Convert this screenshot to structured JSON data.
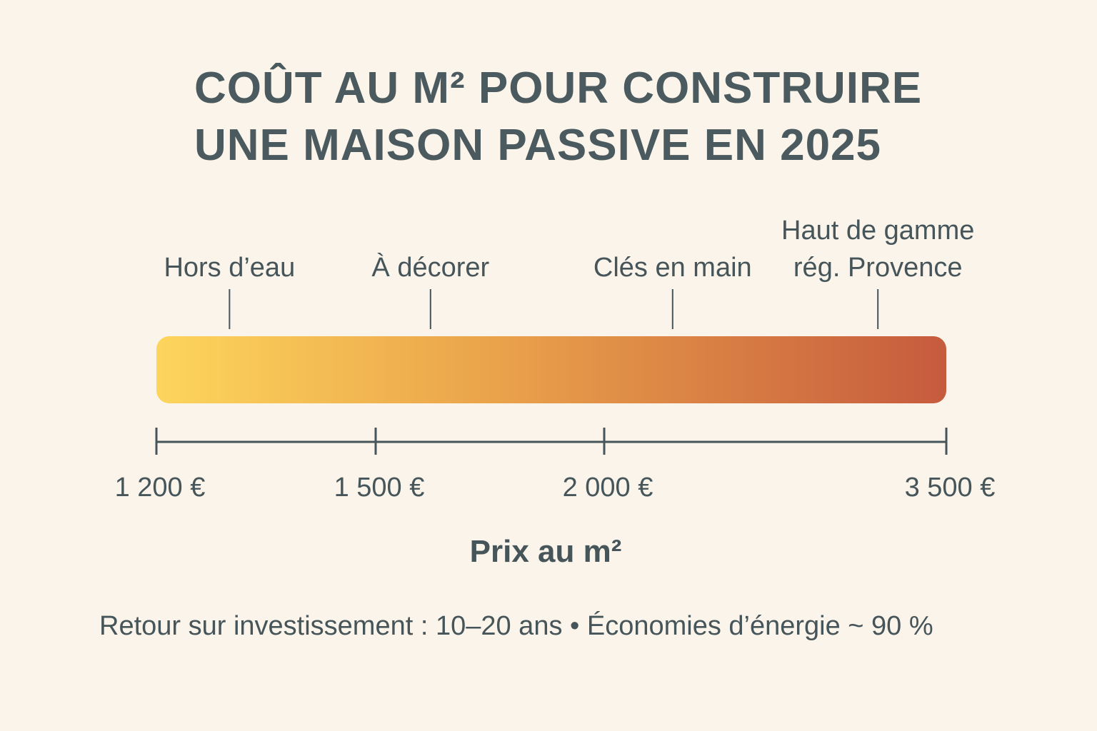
{
  "title": {
    "line1": "COÛT AU M² POUR CONSTRUIRE",
    "line2": "UNE MAISON PASSIVE EN 2025"
  },
  "chart_data": {
    "type": "bar",
    "title": "COÛT AU M² POUR CONSTRUIRE UNE MAISON PASSIVE EN 2025",
    "xlabel": "Prix au m²",
    "range": [
      1200,
      3500
    ],
    "gradient_colors": [
      "#fdd55c",
      "#e9a04a",
      "#c65b3e"
    ],
    "axis_ticks": [
      {
        "value": 1200,
        "label": "1 200 €"
      },
      {
        "value": 1500,
        "label": "1 500 €"
      },
      {
        "value": 2000,
        "label": "2 000 €"
      },
      {
        "value": 3500,
        "label": "3 500 €"
      }
    ],
    "markers": [
      {
        "label_lines": [
          "Hors d’eau"
        ],
        "value": 1300
      },
      {
        "label_lines": [
          "À décorer"
        ],
        "value": 1620
      },
      {
        "label_lines": [
          "Clés en main"
        ],
        "value": 2300
      },
      {
        "label_lines": [
          "Haut de gamme",
          "rég. Provence"
        ],
        "value": 3200
      }
    ]
  },
  "footnote": "Retour sur investissement : 10–20 ans • Économies d’énergie ~ 90 %",
  "colors": {
    "background": "#fbf4ea",
    "text": "#46555a",
    "axis": "#46555a"
  }
}
